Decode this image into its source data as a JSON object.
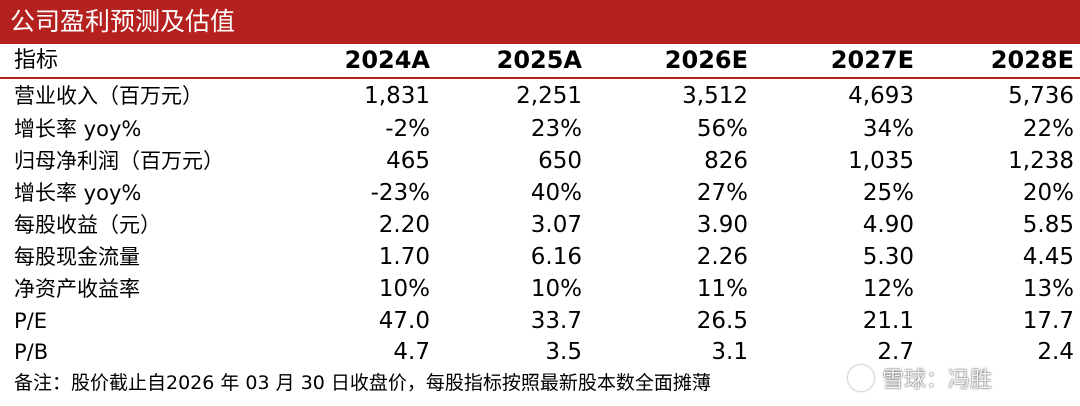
{
  "title": "公司盈利预测及估值",
  "header": {
    "label": "指标",
    "years": [
      "2024A",
      "2025A",
      "2026E",
      "2027E",
      "2028E"
    ]
  },
  "rows": [
    {
      "label": "营业收入（百万元）",
      "values": [
        "1,831",
        "2,251",
        "3,512",
        "4,693",
        "5,736"
      ]
    },
    {
      "label": "增长率 yoy%",
      "values": [
        "-2%",
        "23%",
        "56%",
        "34%",
        "22%"
      ]
    },
    {
      "label": "归母净利润（百万元）",
      "values": [
        "465",
        "650",
        "826",
        "1,035",
        "1,238"
      ]
    },
    {
      "label": "增长率 yoy%",
      "values": [
        "-23%",
        "40%",
        "27%",
        "25%",
        "20%"
      ]
    },
    {
      "label": "每股收益（元）",
      "values": [
        "2.20",
        "3.07",
        "3.90",
        "4.90",
        "5.85"
      ]
    },
    {
      "label": "每股现金流量",
      "values": [
        "1.70",
        "6.16",
        "2.26",
        "5.30",
        "4.45"
      ]
    },
    {
      "label": "净资产收益率",
      "values": [
        "10%",
        "10%",
        "11%",
        "12%",
        "13%"
      ]
    },
    {
      "label": "P/E",
      "values": [
        "47.0",
        "33.7",
        "26.5",
        "21.1",
        "17.7"
      ]
    },
    {
      "label": "P/B",
      "values": [
        "4.7",
        "3.5",
        "3.1",
        "2.7",
        "2.4"
      ]
    }
  ],
  "note": "备注：股价截止自2026 年 03 月 30 日收盘价，每股指标按照最新股本数全面摊薄",
  "watermark": "雪球：冯胜",
  "colors": {
    "accent": "#b5211f"
  }
}
